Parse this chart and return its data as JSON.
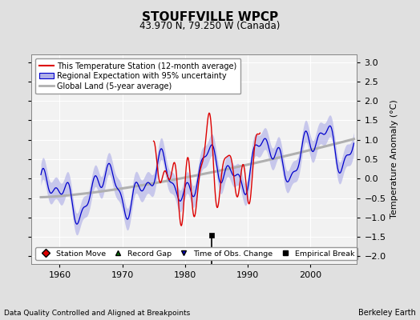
{
  "title": "STOUFFVILLE WPCP",
  "subtitle": "43.970 N, 79.250 W (Canada)",
  "ylabel": "Temperature Anomaly (°C)",
  "xlabel_note": "Data Quality Controlled and Aligned at Breakpoints",
  "credit": "Berkeley Earth",
  "ylim": [
    -2.2,
    3.2
  ],
  "xlim": [
    1955.5,
    2007.5
  ],
  "yticks": [
    -2,
    -1.5,
    -1,
    -0.5,
    0,
    0.5,
    1,
    1.5,
    2,
    2.5,
    3
  ],
  "xticks": [
    1960,
    1970,
    1980,
    1990,
    2000
  ],
  "bg_color": "#e0e0e0",
  "plot_bg_color": "#f2f2f2",
  "red_line_color": "#dd0000",
  "blue_line_color": "#0000cc",
  "blue_fill_color": "#b0b0e8",
  "gray_line_color": "#b0b0b0",
  "marker_red_color": "#dd0000",
  "marker_green_color": "#007700",
  "marker_blue_color": "#0000cc",
  "marker_black_color": "#000000",
  "empirical_break_x": 1984.3,
  "time_obs_x": 1984.3,
  "legend_items": [
    "This Temperature Station (12-month average)",
    "Regional Expectation with 95% uncertainty",
    "Global Land (5-year average)"
  ]
}
